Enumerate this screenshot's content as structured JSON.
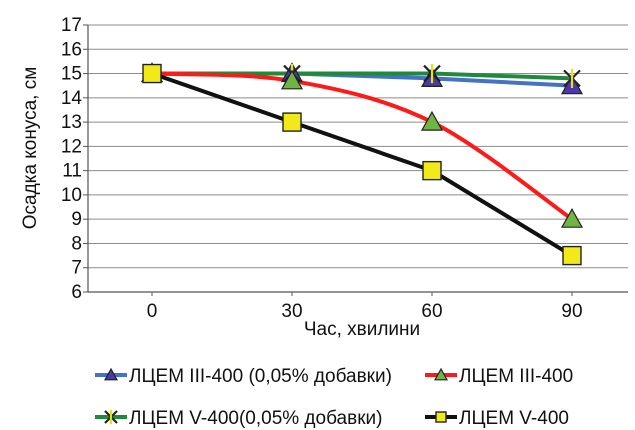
{
  "chart_data": {
    "type": "line",
    "title": "",
    "xlabel": "Час, хвилини",
    "ylabel": "Осадка конуса, см",
    "x": [
      0,
      30,
      60,
      90
    ],
    "x_tick_labels": [
      "0",
      "30",
      "60",
      "90"
    ],
    "ylim": [
      6,
      17
    ],
    "y_ticks": [
      6,
      7,
      8,
      9,
      10,
      11,
      12,
      13,
      14,
      15,
      16,
      17
    ],
    "grid": "horizontal",
    "legend_position": "bottom",
    "series": [
      {
        "name": "ЛЦЕМ III-400 (0,05% добавки)",
        "values": [
          15,
          15,
          14.8,
          14.5
        ],
        "color": "#4472c4",
        "marker": "triangle",
        "marker_fill": "#4a3aa6",
        "smooth": false
      },
      {
        "name": "ЛЦЕМ III-400",
        "values": [
          15,
          14.7,
          13,
          9
        ],
        "color": "#ff1a1a",
        "marker": "triangle",
        "marker_fill": "#6fb542",
        "smooth": true
      },
      {
        "name": "ЛЦЕМ V-400(0,05% добавки)",
        "values": [
          15,
          15,
          15,
          14.8
        ],
        "color": "#1f8a3c",
        "marker": "asterisk",
        "marker_fill": "#e8e010",
        "smooth": false
      },
      {
        "name": "ЛЦЕМ V-400",
        "values": [
          15,
          13,
          11,
          7.5
        ],
        "color": "#111111",
        "marker": "square",
        "marker_fill": "#f2ea18",
        "smooth": false
      }
    ]
  }
}
